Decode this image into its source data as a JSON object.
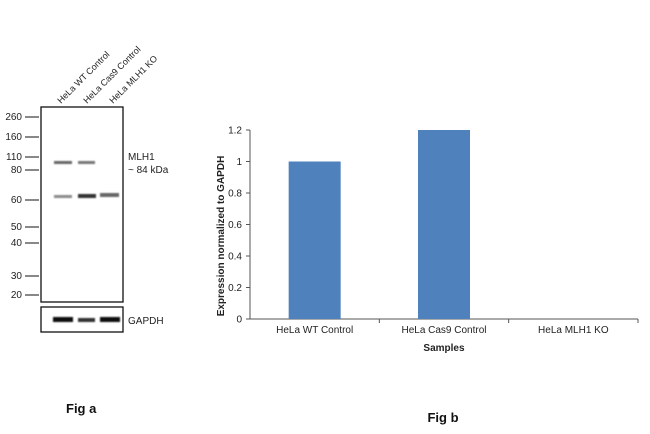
{
  "figure_a": {
    "caption": "Fig a",
    "lanes": [
      "HeLa WT Control",
      "HeLa Cas9 Control",
      "HeLa MLH1 KO"
    ],
    "marker_kda": [
      "260",
      "160",
      "110",
      "80",
      "60",
      "50",
      "40",
      "30",
      "20"
    ],
    "target_label": "MLH1",
    "target_size": "~ 84 kDa",
    "loading_control": "GAPDH"
  },
  "chart_data": {
    "type": "bar",
    "title": "",
    "caption": "Fig b",
    "categories": [
      "HeLa WT Control",
      "HeLa Cas9 Control",
      "HeLa MLH1 KO"
    ],
    "values": [
      1.0,
      1.2,
      0.0
    ],
    "xlabel": "Samples",
    "ylabel": "Expression  normalized to GAPDH",
    "ylim": [
      0,
      1.2
    ],
    "yticks": [
      "0",
      "0.2",
      "0.4",
      "0.6",
      "0.8",
      "1",
      "1.2"
    ],
    "bar_color": "#4f81bd"
  }
}
